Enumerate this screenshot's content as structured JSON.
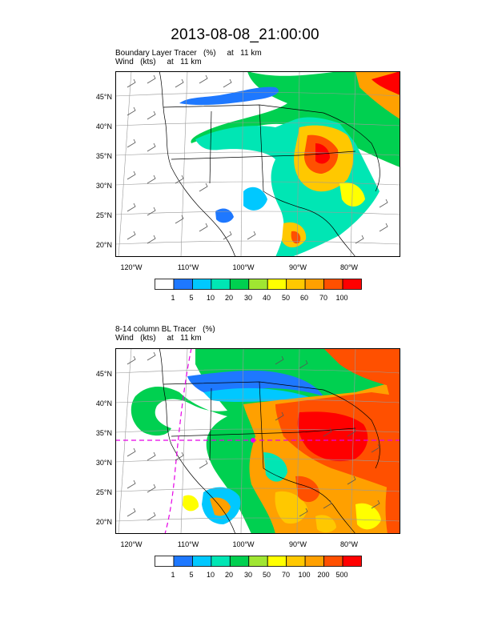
{
  "title": "2013-08-08_21:00:00",
  "panels": [
    {
      "key": "top",
      "title_line1": "Boundary Layer Tracer   (%)     at   11 km",
      "title_line2": "Wind   (kts)     at   11 km",
      "lat_labels": [
        "45°N",
        "40°N",
        "35°N",
        "30°N",
        "25°N",
        "20°N"
      ],
      "lon_labels": [
        "120°W",
        "110°W",
        "100°W",
        "90°W",
        "80°W"
      ],
      "colorbar_labels": [
        "1",
        "5",
        "10",
        "20",
        "30",
        "40",
        "50",
        "60",
        "70",
        "100"
      ]
    },
    {
      "key": "bottom",
      "title_line1": "8-14 column BL Tracer   (%)",
      "title_line2": "Wind   (kts)     at   11 km",
      "lat_labels": [
        "45°N",
        "40°N",
        "35°N",
        "30°N",
        "25°N",
        "20°N"
      ],
      "lon_labels": [
        "120°W",
        "110°W",
        "100°W",
        "90°W",
        "80°W"
      ],
      "colorbar_labels": [
        "1",
        "5",
        "10",
        "20",
        "30",
        "50",
        "70",
        "100",
        "200",
        "500"
      ]
    }
  ],
  "colorbar_colors": [
    "#ffffff",
    "#1e78ff",
    "#00c8ff",
    "#00e6b4",
    "#00d050",
    "#a0e632",
    "#ffff00",
    "#ffc800",
    "#ffa000",
    "#ff5000",
    "#ff0000"
  ],
  "accent_overlay_color": "#e600e6"
}
